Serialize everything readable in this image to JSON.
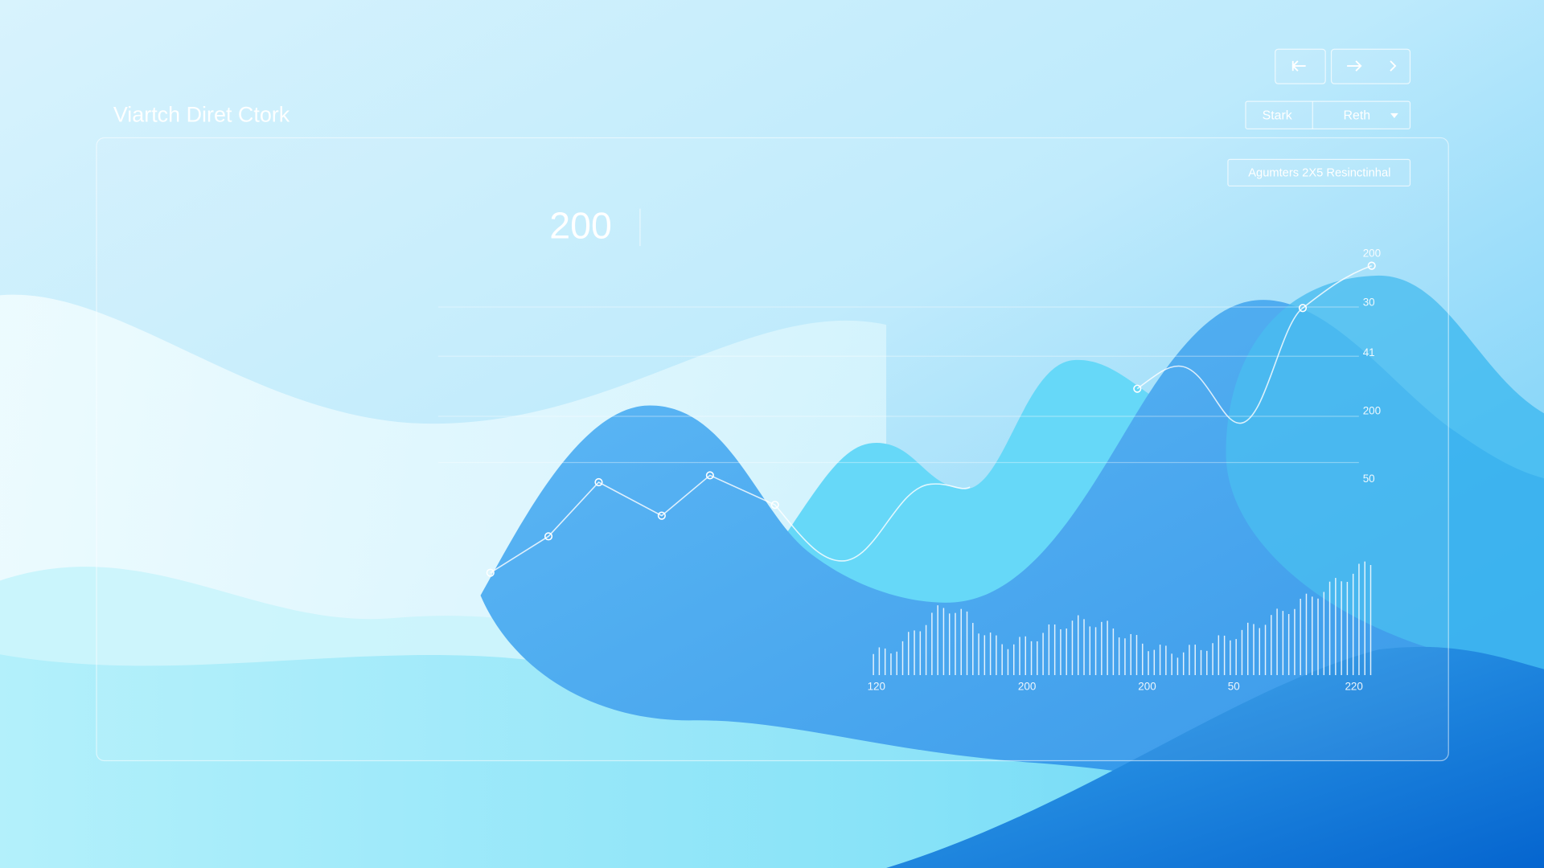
{
  "header": {
    "title": "Viartch Diret Ctork"
  },
  "controls": {
    "range": [
      "Stark",
      "Reth"
    ]
  },
  "badge": "Agumters 2X5 Resinctinhal",
  "headline": "200",
  "right_axis": [
    "200",
    "30",
    "41",
    "200",
    "50"
  ],
  "bottom_axis": [
    "120",
    "200",
    "200",
    "50",
    "220"
  ]
}
